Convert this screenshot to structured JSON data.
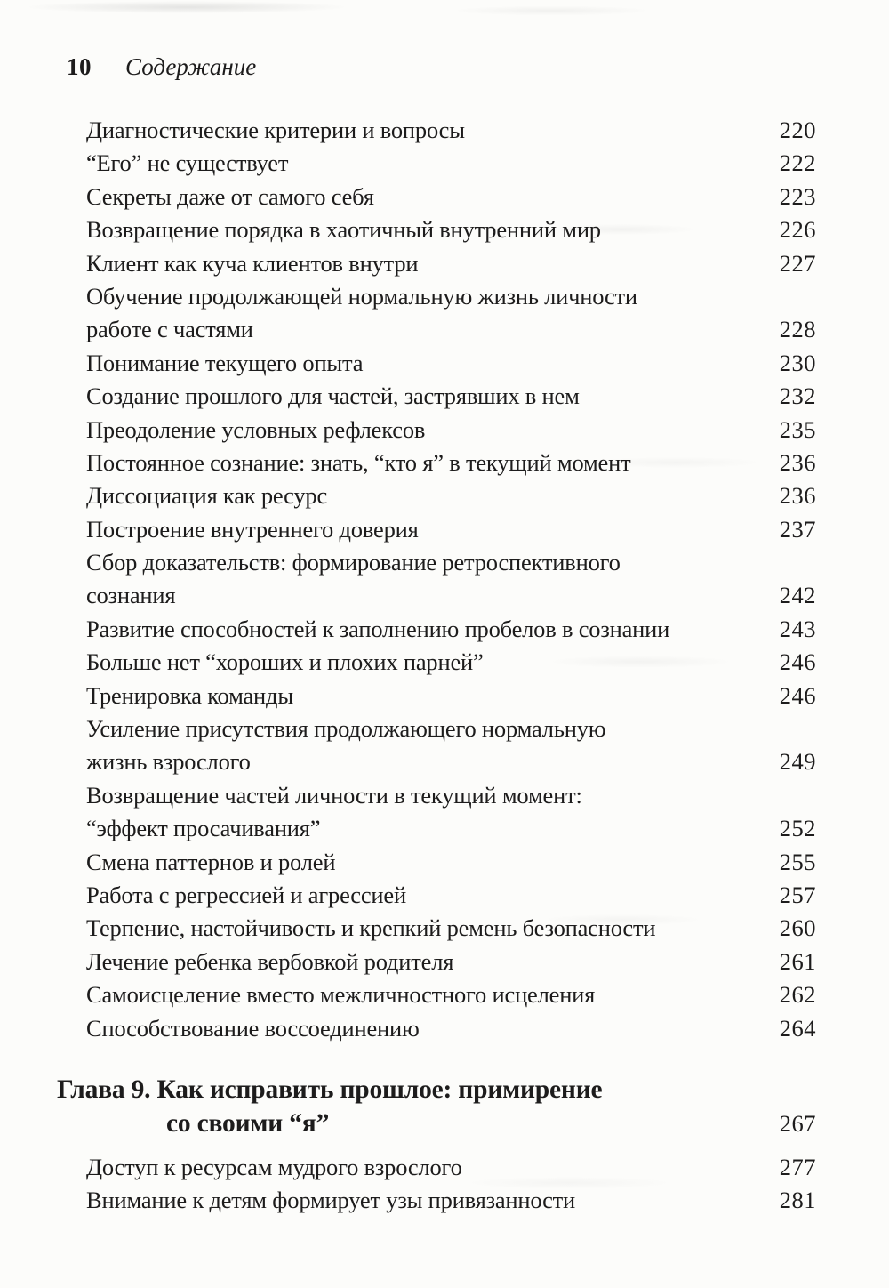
{
  "header": {
    "folio": "10",
    "title": "Содержание"
  },
  "toc": {
    "entries": [
      {
        "lines": [
          "Диагностические критерии и вопросы"
        ],
        "page": "220"
      },
      {
        "lines": [
          "“Его” не существует"
        ],
        "page": "222"
      },
      {
        "lines": [
          "Секреты даже от самого себя"
        ],
        "page": "223"
      },
      {
        "lines": [
          "Возвращение порядка в хаотичный внутренний мир"
        ],
        "page": "226"
      },
      {
        "lines": [
          "Клиент как куча клиентов внутри"
        ],
        "page": "227"
      },
      {
        "lines": [
          "Обучение продолжающей нормальную жизнь личности",
          "работе с частями"
        ],
        "page": "228"
      },
      {
        "lines": [
          "Понимание текущего опыта"
        ],
        "page": "230"
      },
      {
        "lines": [
          "Создание прошлого для частей, застрявших в нем"
        ],
        "page": "232"
      },
      {
        "lines": [
          "Преодоление условных рефлексов"
        ],
        "page": "235"
      },
      {
        "lines": [
          "Постоянное сознание: знать, “кто я” в текущий момент"
        ],
        "page": "236"
      },
      {
        "lines": [
          "Диссоциация как ресурс"
        ],
        "page": "236"
      },
      {
        "lines": [
          "Построение внутреннего доверия"
        ],
        "page": "237"
      },
      {
        "lines": [
          "Сбор доказательств: формирование ретроспективного",
          "сознания"
        ],
        "page": "242"
      },
      {
        "lines": [
          "Развитие способностей к заполнению пробелов в сознании"
        ],
        "page": "243"
      },
      {
        "lines": [
          "Больше нет “хороших и плохих парней”"
        ],
        "page": "246"
      },
      {
        "lines": [
          "Тренировка команды"
        ],
        "page": "246"
      },
      {
        "lines": [
          "Усиление присутствия продолжающего нормальную",
          "жизнь взрослого"
        ],
        "page": "249"
      },
      {
        "lines": [
          "Возвращение частей личности в текущий момент:",
          "“эффект просачивания”"
        ],
        "page": "252"
      },
      {
        "lines": [
          "Смена паттернов и ролей"
        ],
        "page": "255"
      },
      {
        "lines": [
          "Работа с регрессией и агрессией"
        ],
        "page": "257"
      },
      {
        "lines": [
          "Терпение, настойчивость и крепкий ремень безопасности"
        ],
        "page": "260"
      },
      {
        "lines": [
          "Лечение ребенка вербовкой родителя"
        ],
        "page": "261"
      },
      {
        "lines": [
          "Самоисцеление вместо межличностного исцеления"
        ],
        "page": "262"
      },
      {
        "lines": [
          "Способствование воссоединению"
        ],
        "page": "264"
      }
    ],
    "chapter": {
      "line1": "Глава 9. Как исправить прошлое: примирение",
      "line2": "со своими “я”",
      "page": "267"
    },
    "entries_after_chapter": [
      {
        "lines": [
          "Доступ к ресурсам мудрого взрослого"
        ],
        "page": "277"
      },
      {
        "lines": [
          "Внимание к детям формирует узы привязанности"
        ],
        "page": "281"
      }
    ]
  }
}
